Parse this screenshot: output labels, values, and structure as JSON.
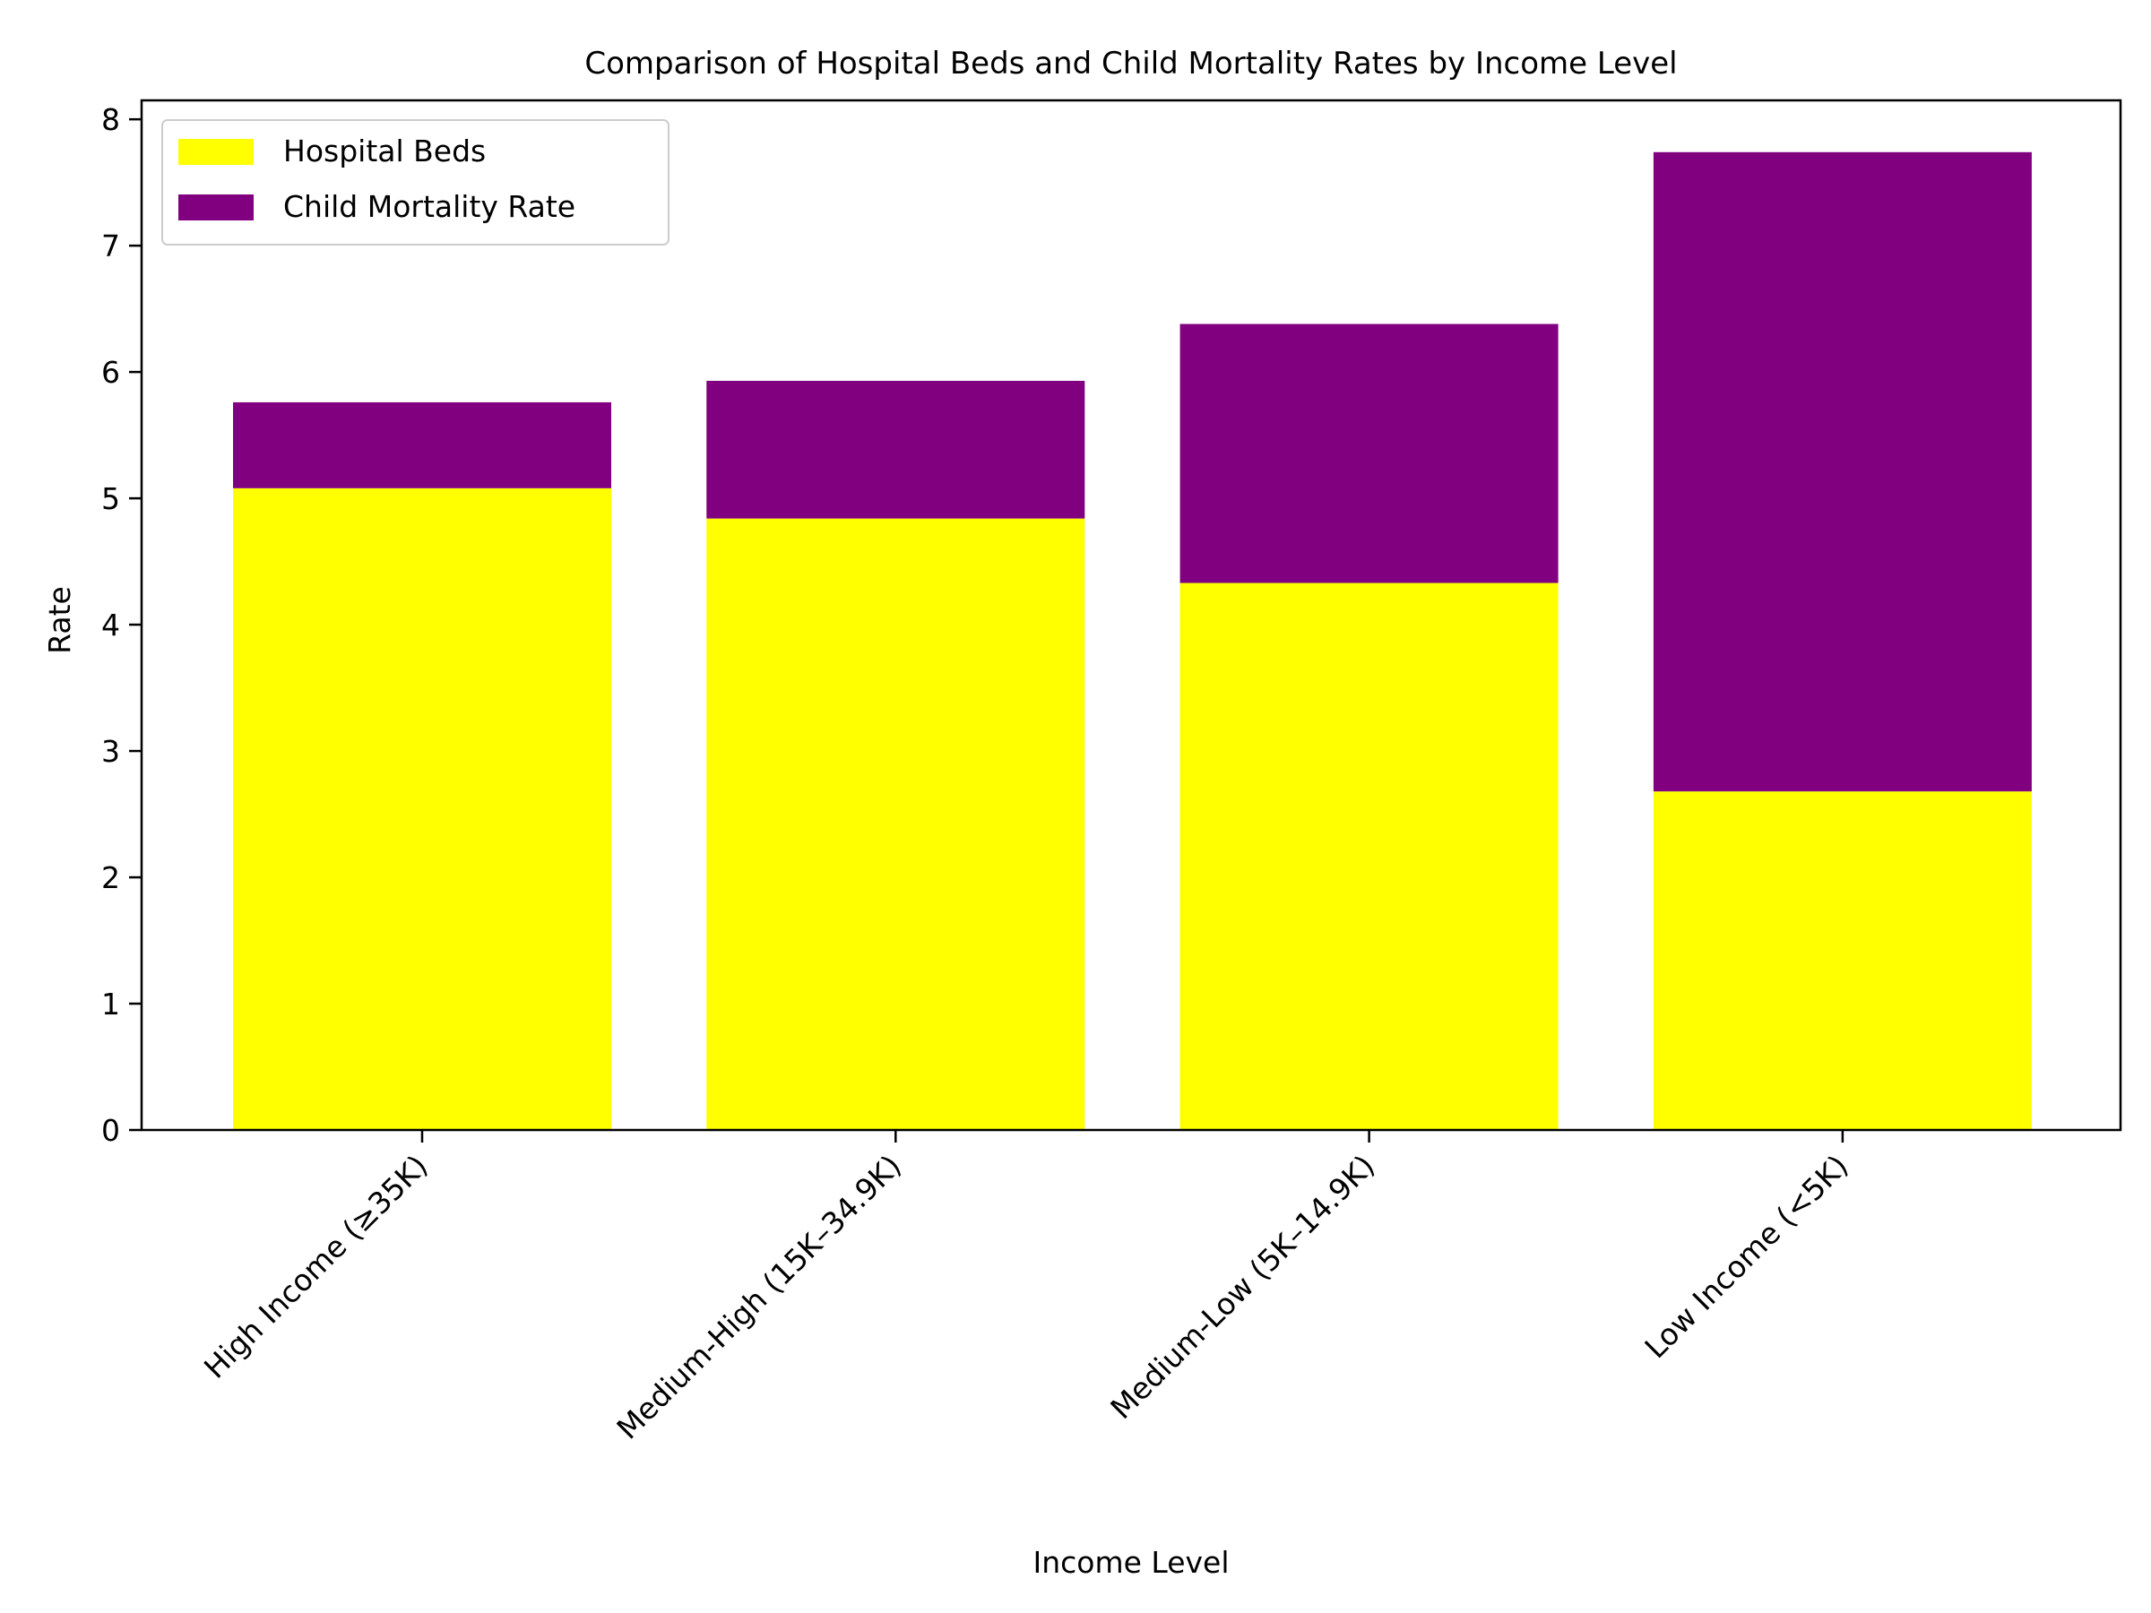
{
  "chart_data": {
    "type": "bar",
    "stacked": true,
    "title": "Comparison of Hospital Beds and Child Mortality Rates by Income Level",
    "xlabel": "Income Level",
    "ylabel": "Rate",
    "ylim": [
      0,
      8.15
    ],
    "yticks": [
      0,
      1,
      2,
      3,
      4,
      5,
      6,
      7,
      8
    ],
    "categories": [
      "High Income (≥35K)",
      "Medium-High (15K–34.9K)",
      "Medium-Low (5K–14.9K)",
      "Low Income (<5K)"
    ],
    "series": [
      {
        "name": "Hospital Beds",
        "color": "#ffff00",
        "values": [
          5.08,
          4.84,
          4.33,
          2.68
        ]
      },
      {
        "name": "Child Mortality Rate",
        "color": "#800080",
        "values": [
          0.68,
          1.09,
          2.05,
          5.06
        ]
      }
    ],
    "legend_position": "upper-left",
    "grid": false
  }
}
